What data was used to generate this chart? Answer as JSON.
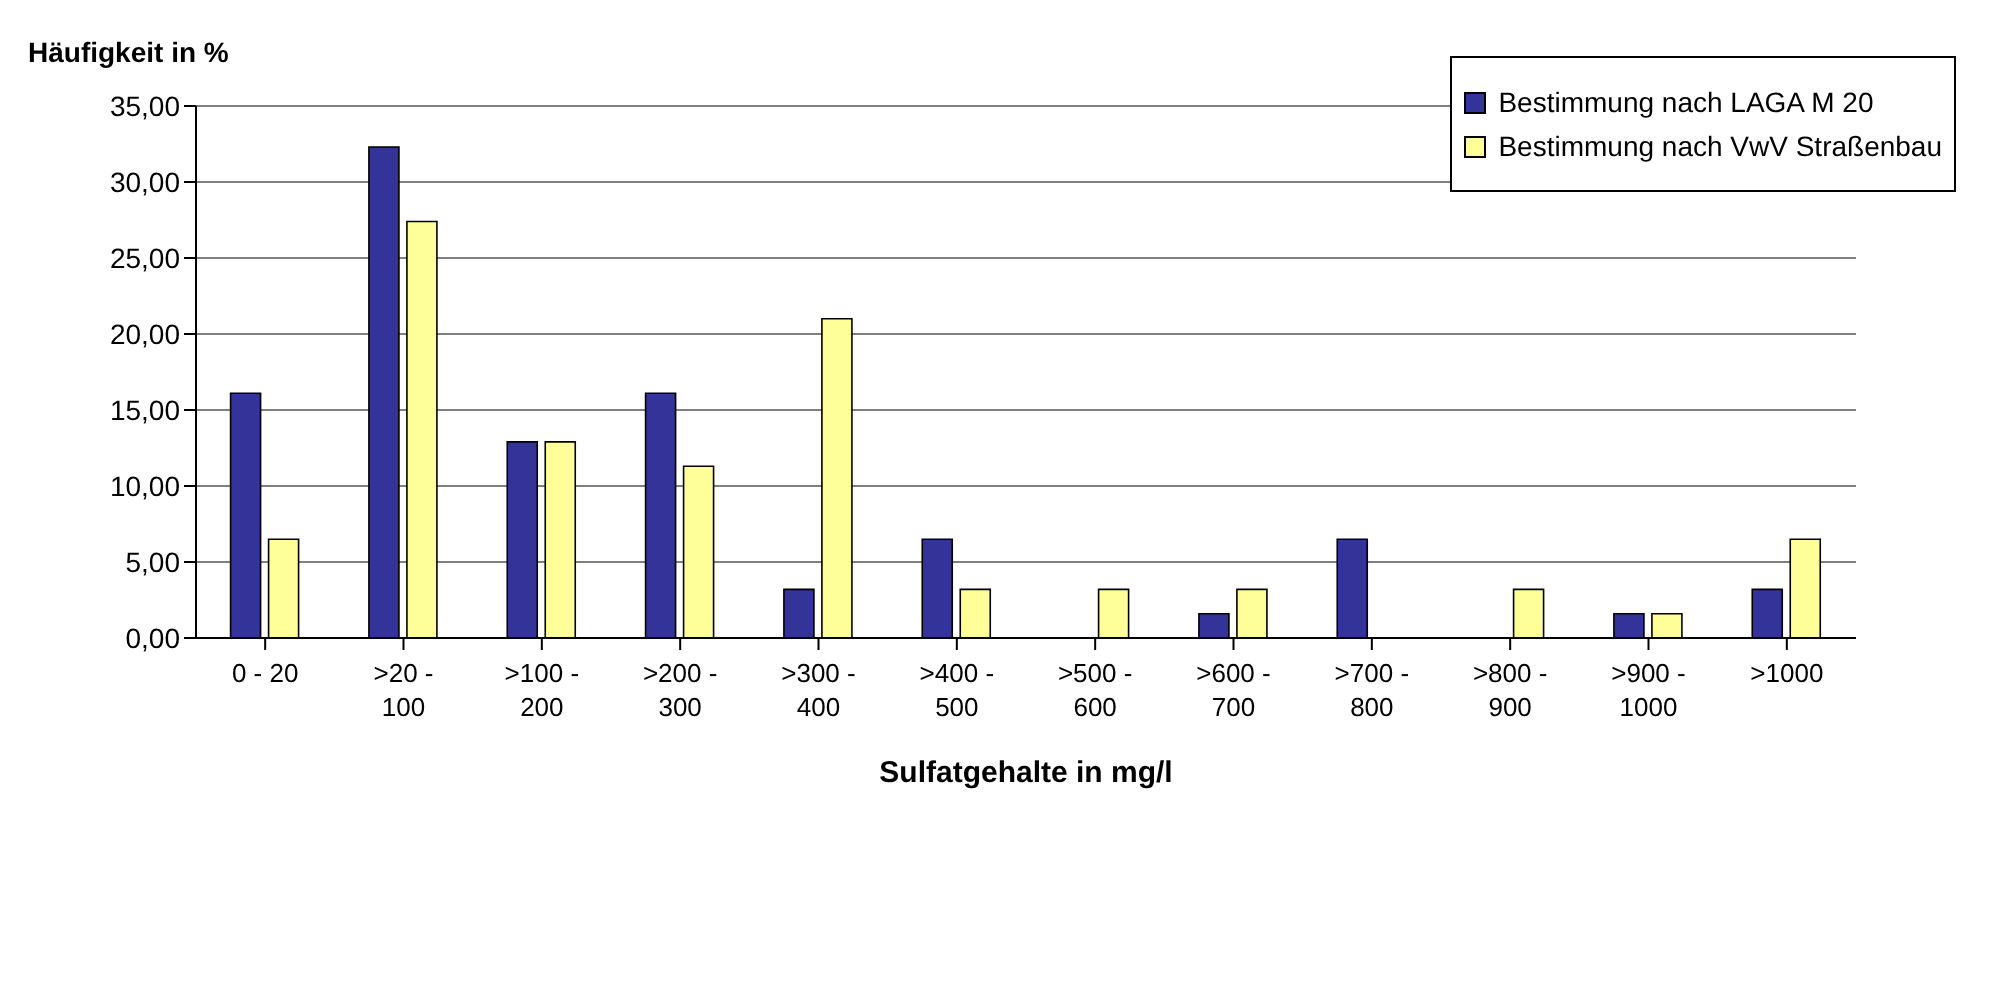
{
  "chart_data": {
    "type": "bar",
    "ylabel": "Häufigkeit in %",
    "xlabel": "Sulfatgehalte in mg/l",
    "categories": [
      "0 - 20",
      ">20 - 100",
      ">100 - 200",
      ">200 - 300",
      ">300 - 400",
      ">400 - 500",
      ">500 - 600",
      ">600 - 700",
      ">700 - 800",
      ">800 - 900",
      ">900 - 1000",
      ">1000"
    ],
    "series": [
      {
        "name": "Bestimmung nach LAGA M 20",
        "color": "#333399",
        "values": [
          16.1,
          32.3,
          12.9,
          16.1,
          3.2,
          6.5,
          0,
          1.6,
          6.5,
          0,
          1.6,
          3.2
        ]
      },
      {
        "name": "Bestimmung nach VwV Straßenbau",
        "color": "#ffff99",
        "values": [
          6.5,
          27.4,
          12.9,
          11.3,
          21.0,
          3.2,
          3.2,
          3.2,
          0,
          3.2,
          1.6,
          6.5
        ]
      }
    ],
    "ylim": [
      0,
      35
    ],
    "yticks": [
      {
        "value": 0,
        "label": "0,00"
      },
      {
        "value": 5,
        "label": "5,00"
      },
      {
        "value": 10,
        "label": "10,00"
      },
      {
        "value": 15,
        "label": "15,00"
      },
      {
        "value": 20,
        "label": "20,00"
      },
      {
        "value": 25,
        "label": "25,00"
      },
      {
        "value": 30,
        "label": "30,00"
      },
      {
        "value": 35,
        "label": "35,00"
      }
    ],
    "grid": "y",
    "legend": "top right"
  }
}
